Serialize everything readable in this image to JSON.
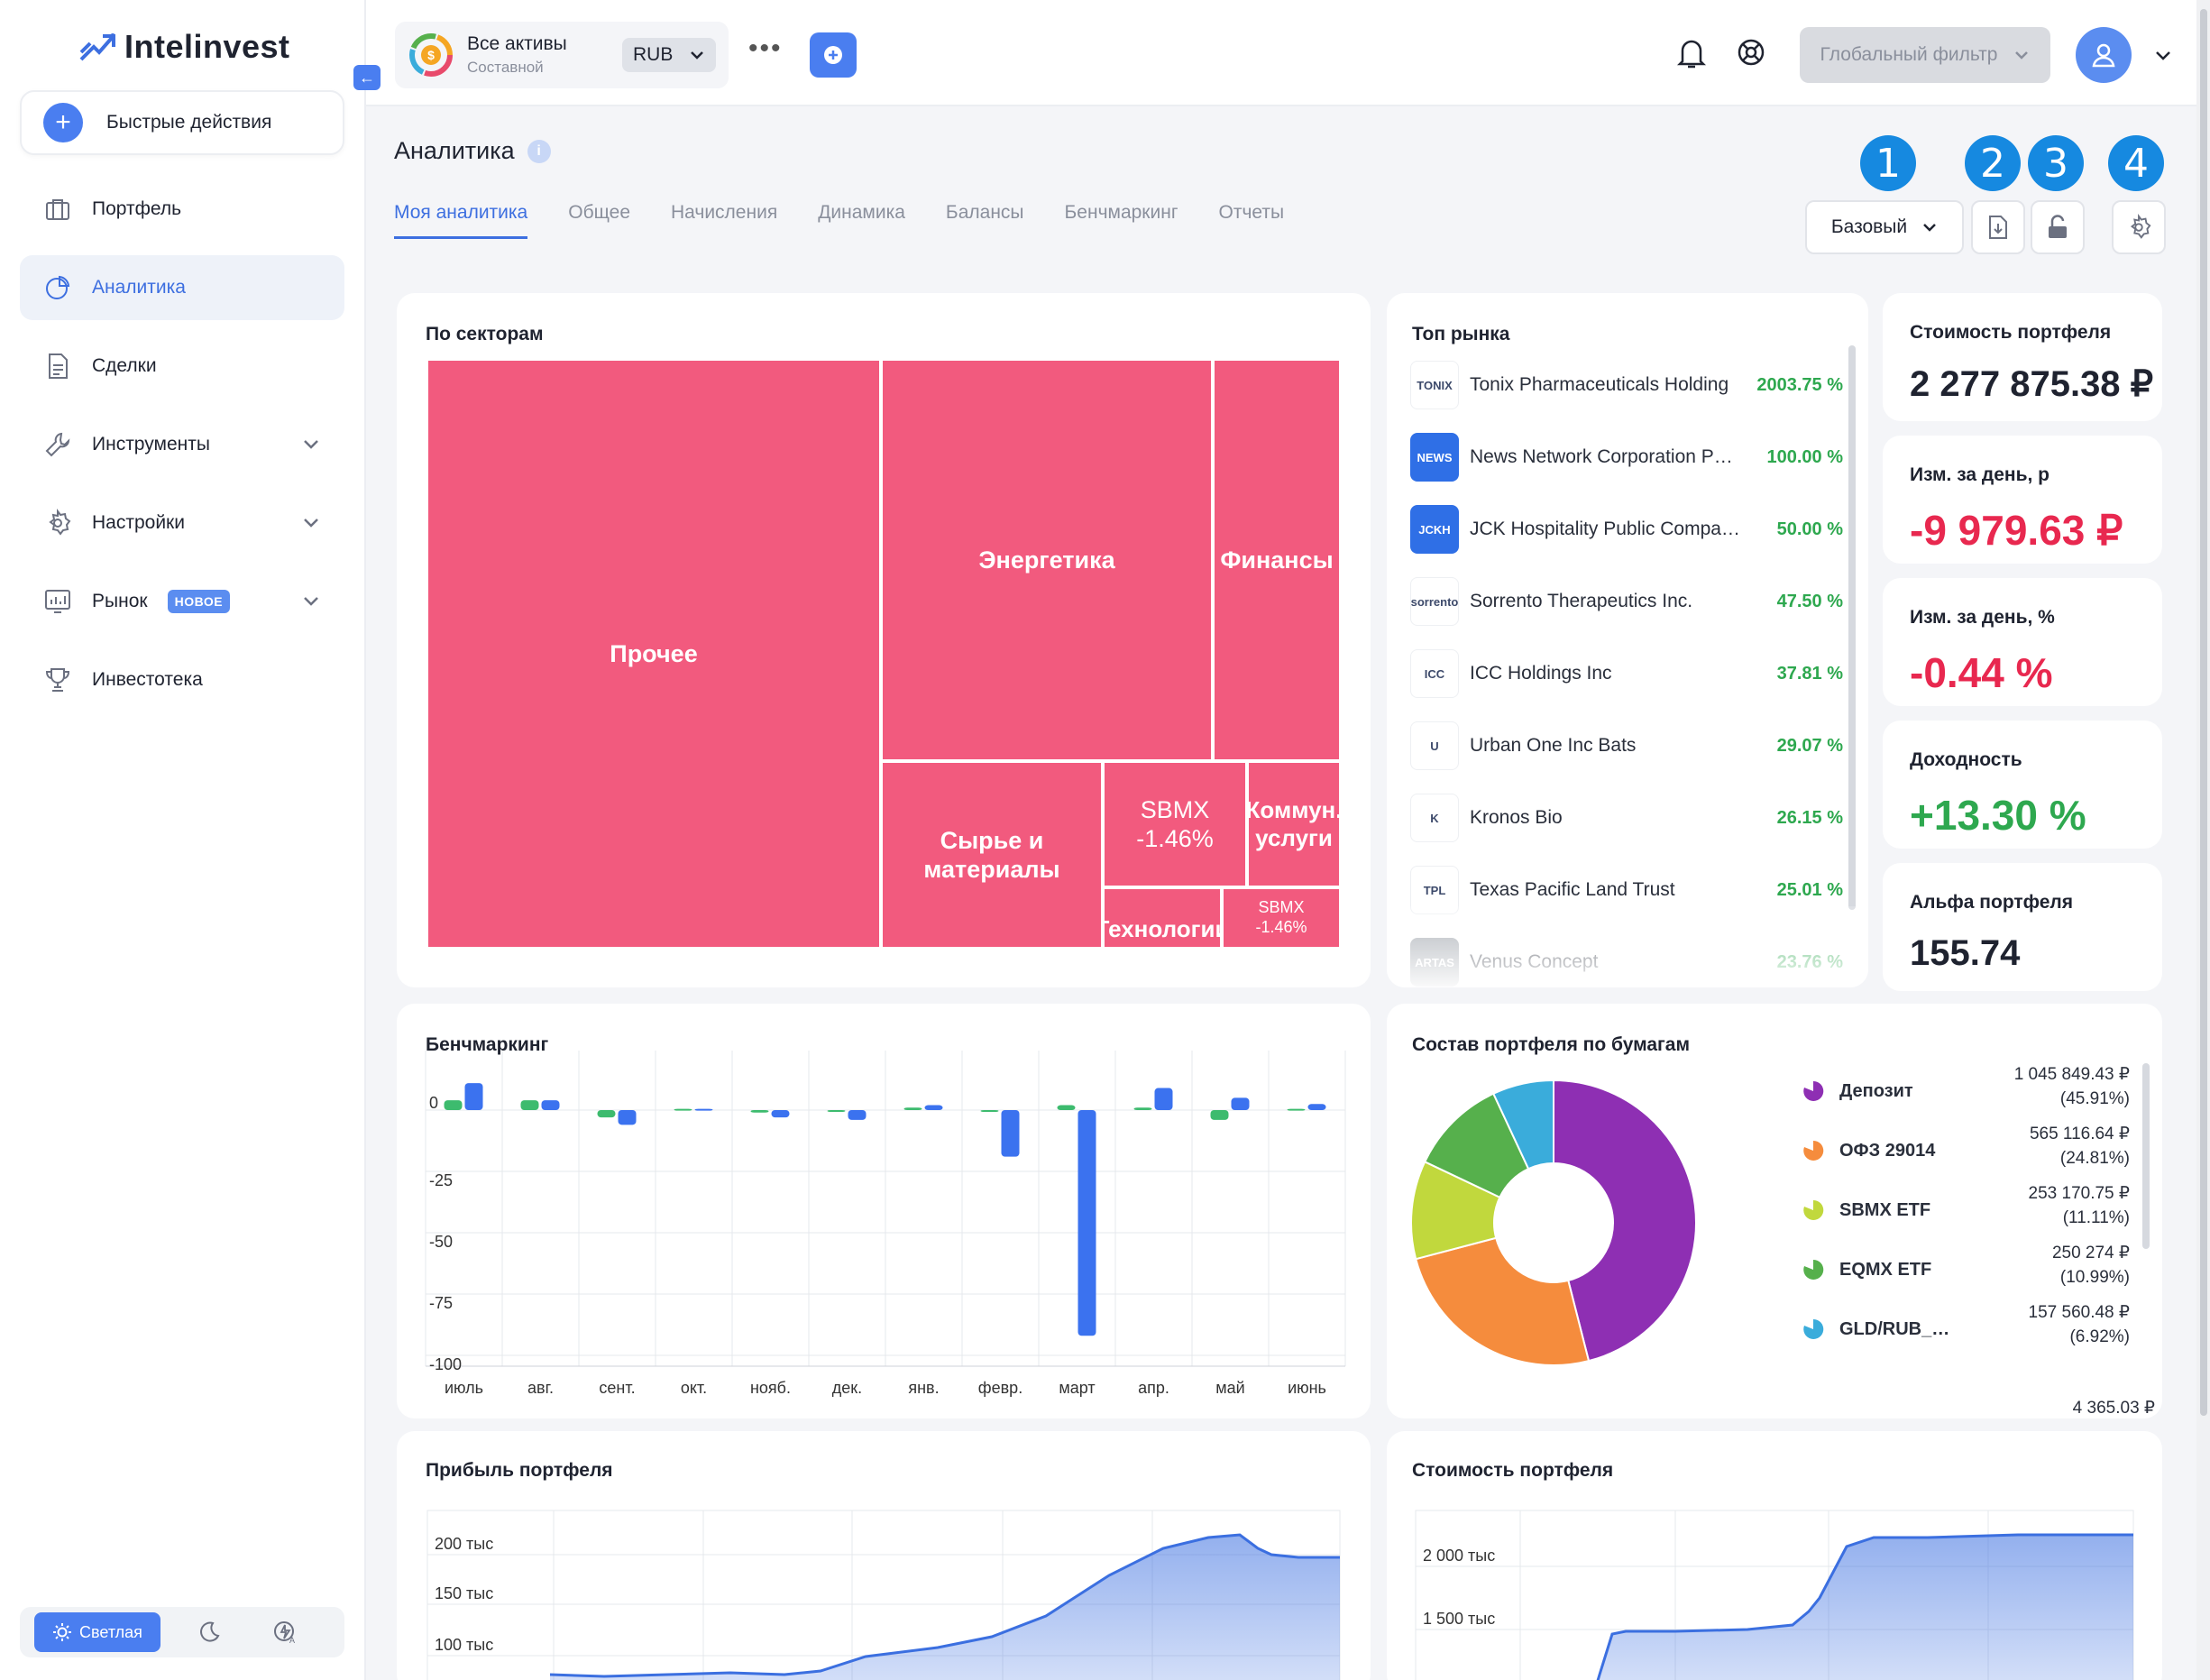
{
  "app": {
    "name": "Intelinvest"
  },
  "sidebar": {
    "quick_actions": "Быстрые действия",
    "items": [
      {
        "label": "Портфель",
        "icon": "briefcase-icon"
      },
      {
        "label": "Аналитика",
        "icon": "pie-chart-icon",
        "active": true
      },
      {
        "label": "Сделки",
        "icon": "document-icon"
      },
      {
        "label": "Инструменты",
        "icon": "wrench-icon",
        "expandable": true
      },
      {
        "label": "Настройки",
        "icon": "gear-icon",
        "expandable": true
      },
      {
        "label": "Рынок",
        "icon": "market-chart-icon",
        "expandable": true,
        "badge": "НОВОЕ"
      },
      {
        "label": "Инвестотека",
        "icon": "trophy-icon"
      }
    ],
    "theme": {
      "light": "Светлая"
    }
  },
  "topbar": {
    "portfolio_title": "Все активы",
    "portfolio_sub": "Составной",
    "currency": "RUB",
    "global_filter": "Глобальный фильтр"
  },
  "page": {
    "title": "Аналитика",
    "tabs": [
      "Моя аналитика",
      "Общее",
      "Начисления",
      "Динамика",
      "Балансы",
      "Бенчмаркинг",
      "Отчеты"
    ],
    "preset": "Базовый",
    "markers": [
      "1",
      "2",
      "3",
      "4"
    ]
  },
  "sectors": {
    "title": "По секторам",
    "color": "#f25a7e",
    "cells": [
      {
        "label": "Прочее"
      },
      {
        "label": "Энергетика"
      },
      {
        "label": "Финансы"
      },
      {
        "label": "Сырье и материалы"
      },
      {
        "label": "SBMX -1.46%"
      },
      {
        "label": "Коммун. услуги"
      },
      {
        "label": "Технологии"
      },
      {
        "label": "SBMX -1.46%"
      }
    ]
  },
  "top_market": {
    "title": "Топ рынка",
    "items": [
      {
        "name": "Tonix Pharmaceuticals Holding",
        "pct": "2003.75 %",
        "logo_text": "TONIX",
        "logo_color": "#ffffff"
      },
      {
        "name": "News Network Corporation P…",
        "pct": "100.00 %",
        "logo_text": "NEWS",
        "logo_color": "#2f6fe6"
      },
      {
        "name": "JCK Hospitality Public Compa…",
        "pct": "50.00 %",
        "logo_text": "JCKH",
        "logo_color": "#2f6fe6"
      },
      {
        "name": "Sorrento Therapeutics Inc.",
        "pct": "47.50 %",
        "logo_text": "sorrento",
        "logo_color": "#ffffff"
      },
      {
        "name": "ICC Holdings Inc",
        "pct": "37.81 %",
        "logo_text": "ICC",
        "logo_color": "#ffffff"
      },
      {
        "name": "Urban One Inc Bats",
        "pct": "29.07 %",
        "logo_text": "U",
        "logo_color": "#ffffff"
      },
      {
        "name": "Kronos Bio",
        "pct": "26.15 %",
        "logo_text": "K",
        "logo_color": "#ffffff"
      },
      {
        "name": "Texas Pacific Land Trust",
        "pct": "25.01 %",
        "logo_text": "TPL",
        "logo_color": "#ffffff"
      },
      {
        "name": "Venus Concept",
        "pct": "23.76 %",
        "logo_text": "ARTAS",
        "logo_color": "#9aa0a8"
      }
    ]
  },
  "kpis": [
    {
      "label": "Стоимость портфеля",
      "value": "2 277 875.38 ₽",
      "color": "#1f2330"
    },
    {
      "label": "Изм. за день, р",
      "value": "-9 979.63 ₽",
      "color": "#e8284f"
    },
    {
      "label": "Изм. за день, %",
      "value": "-0.44 %",
      "color": "#e8284f"
    },
    {
      "label": "Доходность",
      "value": "+13.30 %",
      "color": "#2ea84f"
    },
    {
      "label": "Альфа портфеля",
      "value": "155.74",
      "color": "#1f2330"
    }
  ],
  "benchmark": {
    "title": "Бенчмаркинг",
    "y_ticks": [
      "0",
      "-25",
      "-50",
      "-75",
      "-100"
    ],
    "months": [
      "июль",
      "авг.",
      "сент.",
      "окт.",
      "нояб.",
      "дек.",
      "янв.",
      "февр.",
      "март",
      "апр.",
      "май",
      "июнь"
    ]
  },
  "composition": {
    "title": "Состав портфеля по бумагам",
    "items": [
      {
        "name": "Депозит",
        "value": "1 045 849.43 ₽",
        "pct": "(45.91%)",
        "color": "#8e2fb3"
      },
      {
        "name": "ОФЗ 29014",
        "value": "565 116.64 ₽",
        "pct": "(24.81%)",
        "color": "#f58c3d"
      },
      {
        "name": "SBMX ETF",
        "value": "253 170.75 ₽",
        "pct": "(11.11%)",
        "color": "#c1d83d"
      },
      {
        "name": "EQMX ETF",
        "value": "250 274 ₽",
        "pct": "(10.99%)",
        "color": "#56b04c"
      },
      {
        "name": "GLD/RUB_…",
        "value": "157 560.48 ₽",
        "pct": "(6.92%)",
        "color": "#3aacdb"
      }
    ],
    "next_value": "4 365.03 ₽"
  },
  "profit": {
    "title": "Прибыль портфеля",
    "y_ticks": [
      "200 тыс",
      "150 тыс",
      "100 тыс"
    ]
  },
  "value_chart": {
    "title": "Стоимость портфеля",
    "y_ticks": [
      "2 000 тыс",
      "1 500 тыс"
    ]
  },
  "chart_data": [
    {
      "type": "bar",
      "title": "Бенчмаркинг",
      "categories": [
        "июль",
        "авг.",
        "сент.",
        "окт.",
        "нояб.",
        "дек.",
        "янв.",
        "февр.",
        "март",
        "апр.",
        "май",
        "июнь"
      ],
      "ylim": [
        -100,
        10
      ],
      "series": [
        {
          "color": "#3dbb6e",
          "values": [
            4,
            4,
            -3,
            0.5,
            -1,
            0,
            1,
            0,
            2,
            1,
            -4,
            0.5
          ]
        },
        {
          "color": "#3b72ef",
          "values": [
            11,
            4,
            -6,
            0.5,
            -3,
            -4,
            2,
            -19,
            -92,
            9,
            5,
            2.5
          ]
        }
      ]
    },
    {
      "type": "pie",
      "title": "Состав портфеля по бумагам",
      "categories": [
        "Депозит",
        "ОФЗ 29014",
        "SBMX ETF",
        "EQMX ETF",
        "GLD/RUB_…"
      ],
      "values": [
        45.91,
        24.81,
        11.11,
        10.99,
        6.92
      ]
    }
  ]
}
